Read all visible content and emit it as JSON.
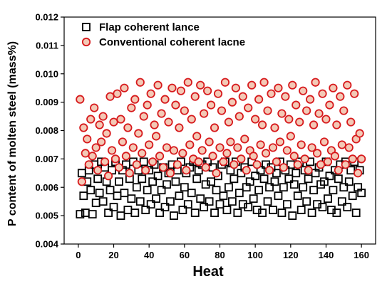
{
  "chart_data": {
    "type": "scatter",
    "xlabel": "Heat",
    "ylabel": "P content of molten steel (mass%)",
    "xlim": [
      -8,
      168
    ],
    "ylim": [
      0.004,
      0.012
    ],
    "xticks": [
      0,
      20,
      40,
      60,
      80,
      100,
      120,
      140,
      160
    ],
    "yticks": [
      0.004,
      0.005,
      0.006,
      0.007,
      0.008,
      0.009,
      0.01,
      0.011,
      0.012
    ],
    "ytick_labels": [
      "0.004",
      "0.005",
      "0.006",
      "0.007",
      "0.008",
      "0.009",
      "0.010",
      "0.011",
      "0.012"
    ],
    "legend_position": "top-left",
    "series": [
      {
        "name": "Flap coherent lance",
        "marker": "open-square",
        "color": "#000000",
        "x": [
          1,
          2,
          3,
          4,
          5,
          6,
          7,
          8,
          9,
          10,
          11,
          12,
          13,
          14,
          15,
          16,
          17,
          18,
          19,
          20,
          21,
          22,
          23,
          24,
          25,
          26,
          27,
          28,
          29,
          30,
          31,
          32,
          33,
          34,
          35,
          36,
          37,
          38,
          39,
          40,
          41,
          42,
          43,
          44,
          45,
          46,
          47,
          48,
          49,
          50,
          51,
          52,
          53,
          54,
          55,
          56,
          57,
          58,
          59,
          60,
          61,
          62,
          63,
          64,
          65,
          66,
          67,
          68,
          69,
          70,
          71,
          72,
          73,
          74,
          75,
          76,
          77,
          78,
          79,
          80,
          81,
          82,
          83,
          84,
          85,
          86,
          87,
          88,
          89,
          90,
          91,
          92,
          93,
          94,
          95,
          96,
          97,
          98,
          99,
          100,
          101,
          102,
          103,
          104,
          105,
          106,
          107,
          108,
          109,
          110,
          111,
          112,
          113,
          114,
          115,
          116,
          117,
          118,
          119,
          120,
          121,
          122,
          123,
          124,
          125,
          126,
          127,
          128,
          129,
          130,
          131,
          132,
          133,
          134,
          135,
          136,
          137,
          138,
          139,
          140,
          141,
          142,
          143,
          144,
          145,
          146,
          147,
          148,
          149,
          150,
          151,
          152,
          153,
          154,
          155,
          156,
          157,
          158,
          159,
          160
        ],
        "y": [
          0.00505,
          0.0065,
          0.0057,
          0.0051,
          0.0062,
          0.0066,
          0.0059,
          0.00505,
          0.0068,
          0.00545,
          0.0063,
          0.0058,
          0.0069,
          0.0055,
          0.0067,
          0.0062,
          0.0051,
          0.0059,
          0.0066,
          0.0053,
          0.0069,
          0.0057,
          0.0062,
          0.005,
          0.0066,
          0.0058,
          0.0068,
          0.0052,
          0.0063,
          0.0056,
          0.0069,
          0.0051,
          0.006,
          0.0066,
          0.0055,
          0.0063,
          0.0069,
          0.0052,
          0.0059,
          0.0066,
          0.0054,
          0.0062,
          0.0068,
          0.0056,
          0.0064,
          0.0051,
          0.0059,
          0.0067,
          0.0053,
          0.0061,
          0.0065,
          0.0055,
          0.0068,
          0.005,
          0.0062,
          0.0066,
          0.0057,
          0.0069,
          0.0052,
          0.006,
          0.0065,
          0.0054,
          0.0067,
          0.0058,
          0.0069,
          0.0051,
          0.0063,
          0.0066,
          0.0056,
          0.0068,
          0.0053,
          0.0061,
          0.0069,
          0.0055,
          0.0062,
          0.0067,
          0.0051,
          0.0059,
          0.0064,
          0.0054,
          0.0068,
          0.0057,
          0.0069,
          0.0052,
          0.006,
          0.0066,
          0.0055,
          0.0063,
          0.0069,
          0.0051,
          0.0058,
          0.0065,
          0.0054,
          0.0067,
          0.006,
          0.0053,
          0.0062,
          0.0069,
          0.0056,
          0.0064,
          0.0052,
          0.0059,
          0.0066,
          0.0051,
          0.0063,
          0.0068,
          0.0055,
          0.006,
          0.0067,
          0.0052,
          0.0062,
          0.0065,
          0.0057,
          0.0069,
          0.0051,
          0.006,
          0.0066,
          0.0054,
          0.0063,
          0.0068,
          0.005,
          0.0061,
          0.0065,
          0.0057,
          0.0069,
          0.0052,
          0.006,
          0.0066,
          0.0055,
          0.0063,
          0.0069,
          0.0051,
          0.0059,
          0.0065,
          0.0054,
          0.0067,
          0.0061,
          0.0053,
          0.0062,
          0.0069,
          0.0056,
          0.0064,
          0.0052,
          0.0059,
          0.0066,
          0.0051,
          0.0063,
          0.0068,
          0.0055,
          0.006,
          0.0069,
          0.0053,
          0.0062,
          0.0066,
          0.0057,
          0.0069,
          0.0051,
          0.006,
          0.0066,
          0.0058
        ]
      },
      {
        "name": "Conventional coherent lacne",
        "marker": "open-circle",
        "color": "#d7191c",
        "x": [
          1,
          2,
          3,
          4,
          5,
          6,
          7,
          8,
          9,
          10,
          11,
          12,
          13,
          14,
          15,
          16,
          17,
          18,
          19,
          20,
          21,
          22,
          23,
          24,
          25,
          26,
          27,
          28,
          29,
          30,
          31,
          32,
          33,
          34,
          35,
          36,
          37,
          38,
          39,
          40,
          41,
          42,
          43,
          44,
          45,
          46,
          47,
          48,
          49,
          50,
          51,
          52,
          53,
          54,
          55,
          56,
          57,
          58,
          59,
          60,
          61,
          62,
          63,
          64,
          65,
          66,
          67,
          68,
          69,
          70,
          71,
          72,
          73,
          74,
          75,
          76,
          77,
          78,
          79,
          80,
          81,
          82,
          83,
          84,
          85,
          86,
          87,
          88,
          89,
          90,
          91,
          92,
          93,
          94,
          95,
          96,
          97,
          98,
          99,
          100,
          101,
          102,
          103,
          104,
          105,
          106,
          107,
          108,
          109,
          110,
          111,
          112,
          113,
          114,
          115,
          116,
          117,
          118,
          119,
          120,
          121,
          122,
          123,
          124,
          125,
          126,
          127,
          128,
          129,
          130,
          131,
          132,
          133,
          134,
          135,
          136,
          137,
          138,
          139,
          140,
          141,
          142,
          143,
          144,
          145,
          146,
          147,
          148,
          149,
          150,
          151,
          152,
          153,
          154,
          155,
          156,
          157,
          158,
          159,
          160
        ],
        "y": [
          0.0091,
          0.0062,
          0.0081,
          0.0072,
          0.0077,
          0.0068,
          0.0084,
          0.0071,
          0.0088,
          0.0074,
          0.0066,
          0.0082,
          0.0076,
          0.0085,
          0.0069,
          0.0079,
          0.0064,
          0.0092,
          0.0073,
          0.0083,
          0.007,
          0.0093,
          0.0067,
          0.0084,
          0.0076,
          0.0095,
          0.0071,
          0.0081,
          0.0065,
          0.0088,
          0.0074,
          0.0091,
          0.0068,
          0.0079,
          0.0097,
          0.0072,
          0.0085,
          0.0066,
          0.0089,
          0.0075,
          0.0093,
          0.0069,
          0.0082,
          0.0078,
          0.0096,
          0.0071,
          0.0086,
          0.0067,
          0.0091,
          0.0074,
          0.0083,
          0.0065,
          0.0095,
          0.0073,
          0.0089,
          0.0068,
          0.0081,
          0.0094,
          0.0072,
          0.0087,
          0.0066,
          0.0097,
          0.0075,
          0.0084,
          0.007,
          0.0092,
          0.0078,
          0.0069,
          0.0096,
          0.0073,
          0.0086,
          0.0067,
          0.0094,
          0.0076,
          0.0089,
          0.0071,
          0.0081,
          0.0065,
          0.0093,
          0.0074,
          0.0087,
          0.0069,
          0.0097,
          0.0072,
          0.0083,
          0.0076,
          0.009,
          0.0068,
          0.0095,
          0.0074,
          0.0085,
          0.007,
          0.0092,
          0.0077,
          0.0066,
          0.0088,
          0.0073,
          0.0096,
          0.0071,
          0.0084,
          0.0068,
          0.0091,
          0.0075,
          0.0082,
          0.0097,
          0.0072,
          0.0087,
          0.0066,
          0.0093,
          0.0074,
          0.0081,
          0.0069,
          0.0095,
          0.0076,
          0.0086,
          0.0067,
          0.0092,
          0.0073,
          0.0084,
          0.0078,
          0.0096,
          0.0071,
          0.0089,
          0.0068,
          0.0083,
          0.0075,
          0.0094,
          0.007,
          0.0087,
          0.0066,
          0.0091,
          0.0074,
          0.0082,
          0.0097,
          0.0072,
          0.0086,
          0.0068,
          0.0093,
          0.0076,
          0.0084,
          0.0069,
          0.0089,
          0.0073,
          0.0095,
          0.0071,
          0.0082,
          0.0066,
          0.0092,
          0.0075,
          0.0087,
          0.0068,
          0.0096,
          0.0074,
          0.0083,
          0.007,
          0.0093,
          0.0077,
          0.0065,
          0.0079,
          0.007
        ]
      }
    ]
  }
}
